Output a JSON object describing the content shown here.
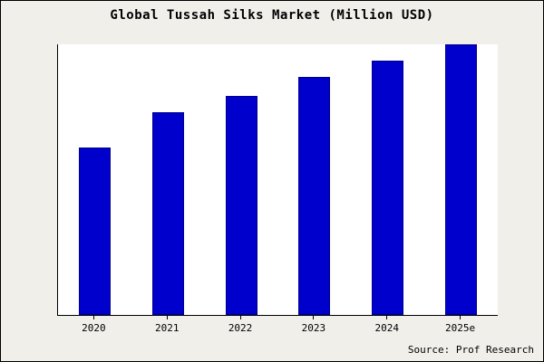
{
  "chart_data": {
    "type": "bar",
    "title": "Global Tussah Silks Market (Million USD)",
    "categories": [
      "2020",
      "2021",
      "2022",
      "2023",
      "2024",
      "2025e"
    ],
    "values": [
      62,
      75,
      81,
      88,
      94,
      100
    ],
    "xlabel": "",
    "ylabel": "",
    "ylim": [
      0,
      100
    ],
    "grid": false,
    "legend_position": "none",
    "bar_color": "#0000cd",
    "bar_border_color": "#00008b",
    "plot_background": "#ffffff",
    "outer_background": "#f0efea"
  },
  "source_note": "Source: Prof Research"
}
